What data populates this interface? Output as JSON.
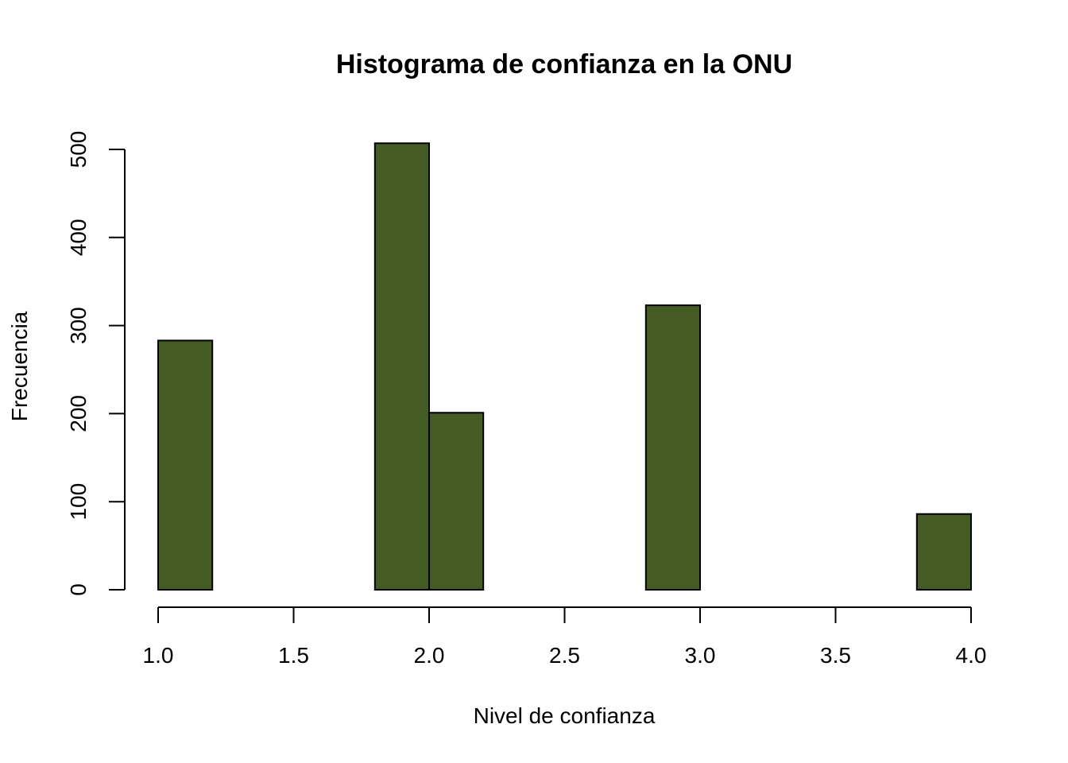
{
  "chart_data": {
    "type": "bar",
    "title": "Histograma de confianza en la ONU",
    "xlabel": "Nivel de confianza",
    "ylabel": "Frecuencia",
    "bins": [
      {
        "start": 1.0,
        "end": 1.2,
        "count": 283
      },
      {
        "start": 1.2,
        "end": 1.4,
        "count": 0
      },
      {
        "start": 1.4,
        "end": 1.6,
        "count": 0
      },
      {
        "start": 1.6,
        "end": 1.8,
        "count": 0
      },
      {
        "start": 1.8,
        "end": 2.0,
        "count": 507
      },
      {
        "start": 2.0,
        "end": 2.2,
        "count": 201
      },
      {
        "start": 2.2,
        "end": 2.4,
        "count": 0
      },
      {
        "start": 2.4,
        "end": 2.6,
        "count": 0
      },
      {
        "start": 2.6,
        "end": 2.8,
        "count": 0
      },
      {
        "start": 2.8,
        "end": 3.0,
        "count": 323
      },
      {
        "start": 3.0,
        "end": 3.2,
        "count": 0
      },
      {
        "start": 3.2,
        "end": 3.4,
        "count": 0
      },
      {
        "start": 3.4,
        "end": 3.6,
        "count": 0
      },
      {
        "start": 3.6,
        "end": 3.8,
        "count": 0
      },
      {
        "start": 3.8,
        "end": 4.0,
        "count": 86
      }
    ],
    "xlim": [
      1.0,
      4.0
    ],
    "ylim": [
      0,
      500
    ],
    "xticks": [
      "1.0",
      "1.5",
      "2.0",
      "2.5",
      "3.0",
      "3.5",
      "4.0"
    ],
    "yticks": [
      "0",
      "100",
      "200",
      "300",
      "400",
      "500"
    ],
    "bar_color": "#445c23",
    "grid": false,
    "legend": "none"
  }
}
